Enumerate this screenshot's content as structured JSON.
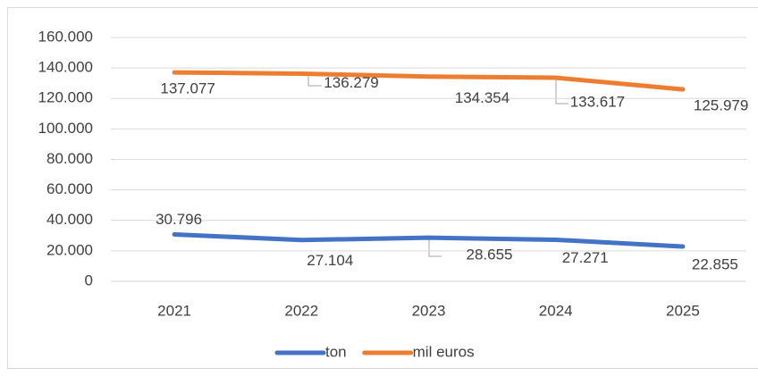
{
  "chart_data": {
    "type": "line",
    "categories": [
      "2021",
      "2022",
      "2023",
      "2024",
      "2025"
    ],
    "series": [
      {
        "name": "ton",
        "color": "#4472c4",
        "values": [
          30796,
          27104,
          28655,
          27271,
          22855
        ],
        "value_labels": [
          "30.796",
          "27.104",
          "28.655",
          "27.271",
          "22.855"
        ]
      },
      {
        "name": "mil euros",
        "color": "#ed7d31",
        "values": [
          137077,
          136279,
          134354,
          133617,
          125979
        ],
        "value_labels": [
          "137.077",
          "136.279",
          "134.354",
          "133.617",
          "125.979"
        ]
      }
    ],
    "ylim": [
      0,
      160000
    ],
    "yticks": [
      0,
      {
        "value": 20000,
        "label": "20.000"
      },
      {
        "value": 40000,
        "label": "40.000"
      },
      {
        "value": 60000,
        "label": "60.000"
      },
      {
        "value": 80000,
        "label": "80.000"
      },
      {
        "value": 100000,
        "label": "100.000"
      },
      {
        "value": 120000,
        "label": "120.000"
      },
      {
        "value": 140000,
        "label": "140.000"
      },
      {
        "value": 160000,
        "label": "160.000"
      }
    ],
    "grid": true,
    "legend": "bottom"
  }
}
